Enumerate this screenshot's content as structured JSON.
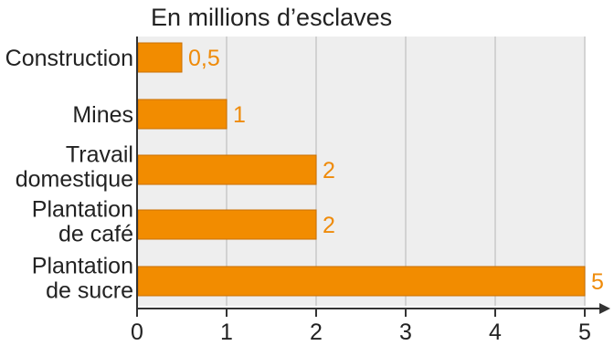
{
  "chart_data": {
    "type": "bar",
    "orientation": "horizontal",
    "title": "En millions d’esclaves",
    "categories": [
      [
        "Construction"
      ],
      [
        "Mines"
      ],
      [
        "Travail",
        "domestique"
      ],
      [
        "Plantation",
        "de café"
      ],
      [
        "Plantation",
        "de sucre"
      ]
    ],
    "values": [
      0.5,
      1,
      2,
      2,
      5
    ],
    "value_labels": [
      "0,5",
      "1",
      "2",
      "2",
      "5"
    ],
    "xlim": [
      0,
      5
    ],
    "x_ticks": [
      0,
      1,
      2,
      3,
      4,
      5
    ],
    "x_tick_labels": [
      "0",
      "1",
      "2",
      "3",
      "4",
      "5"
    ],
    "grid": "vertical",
    "colors": {
      "bar": "#f28c00",
      "bar_edge": "#c96f00",
      "value_text": "#ef8b0a",
      "plot_background": "#eeeeee",
      "grid": "#c8c8c8",
      "axis": "#333333"
    }
  }
}
